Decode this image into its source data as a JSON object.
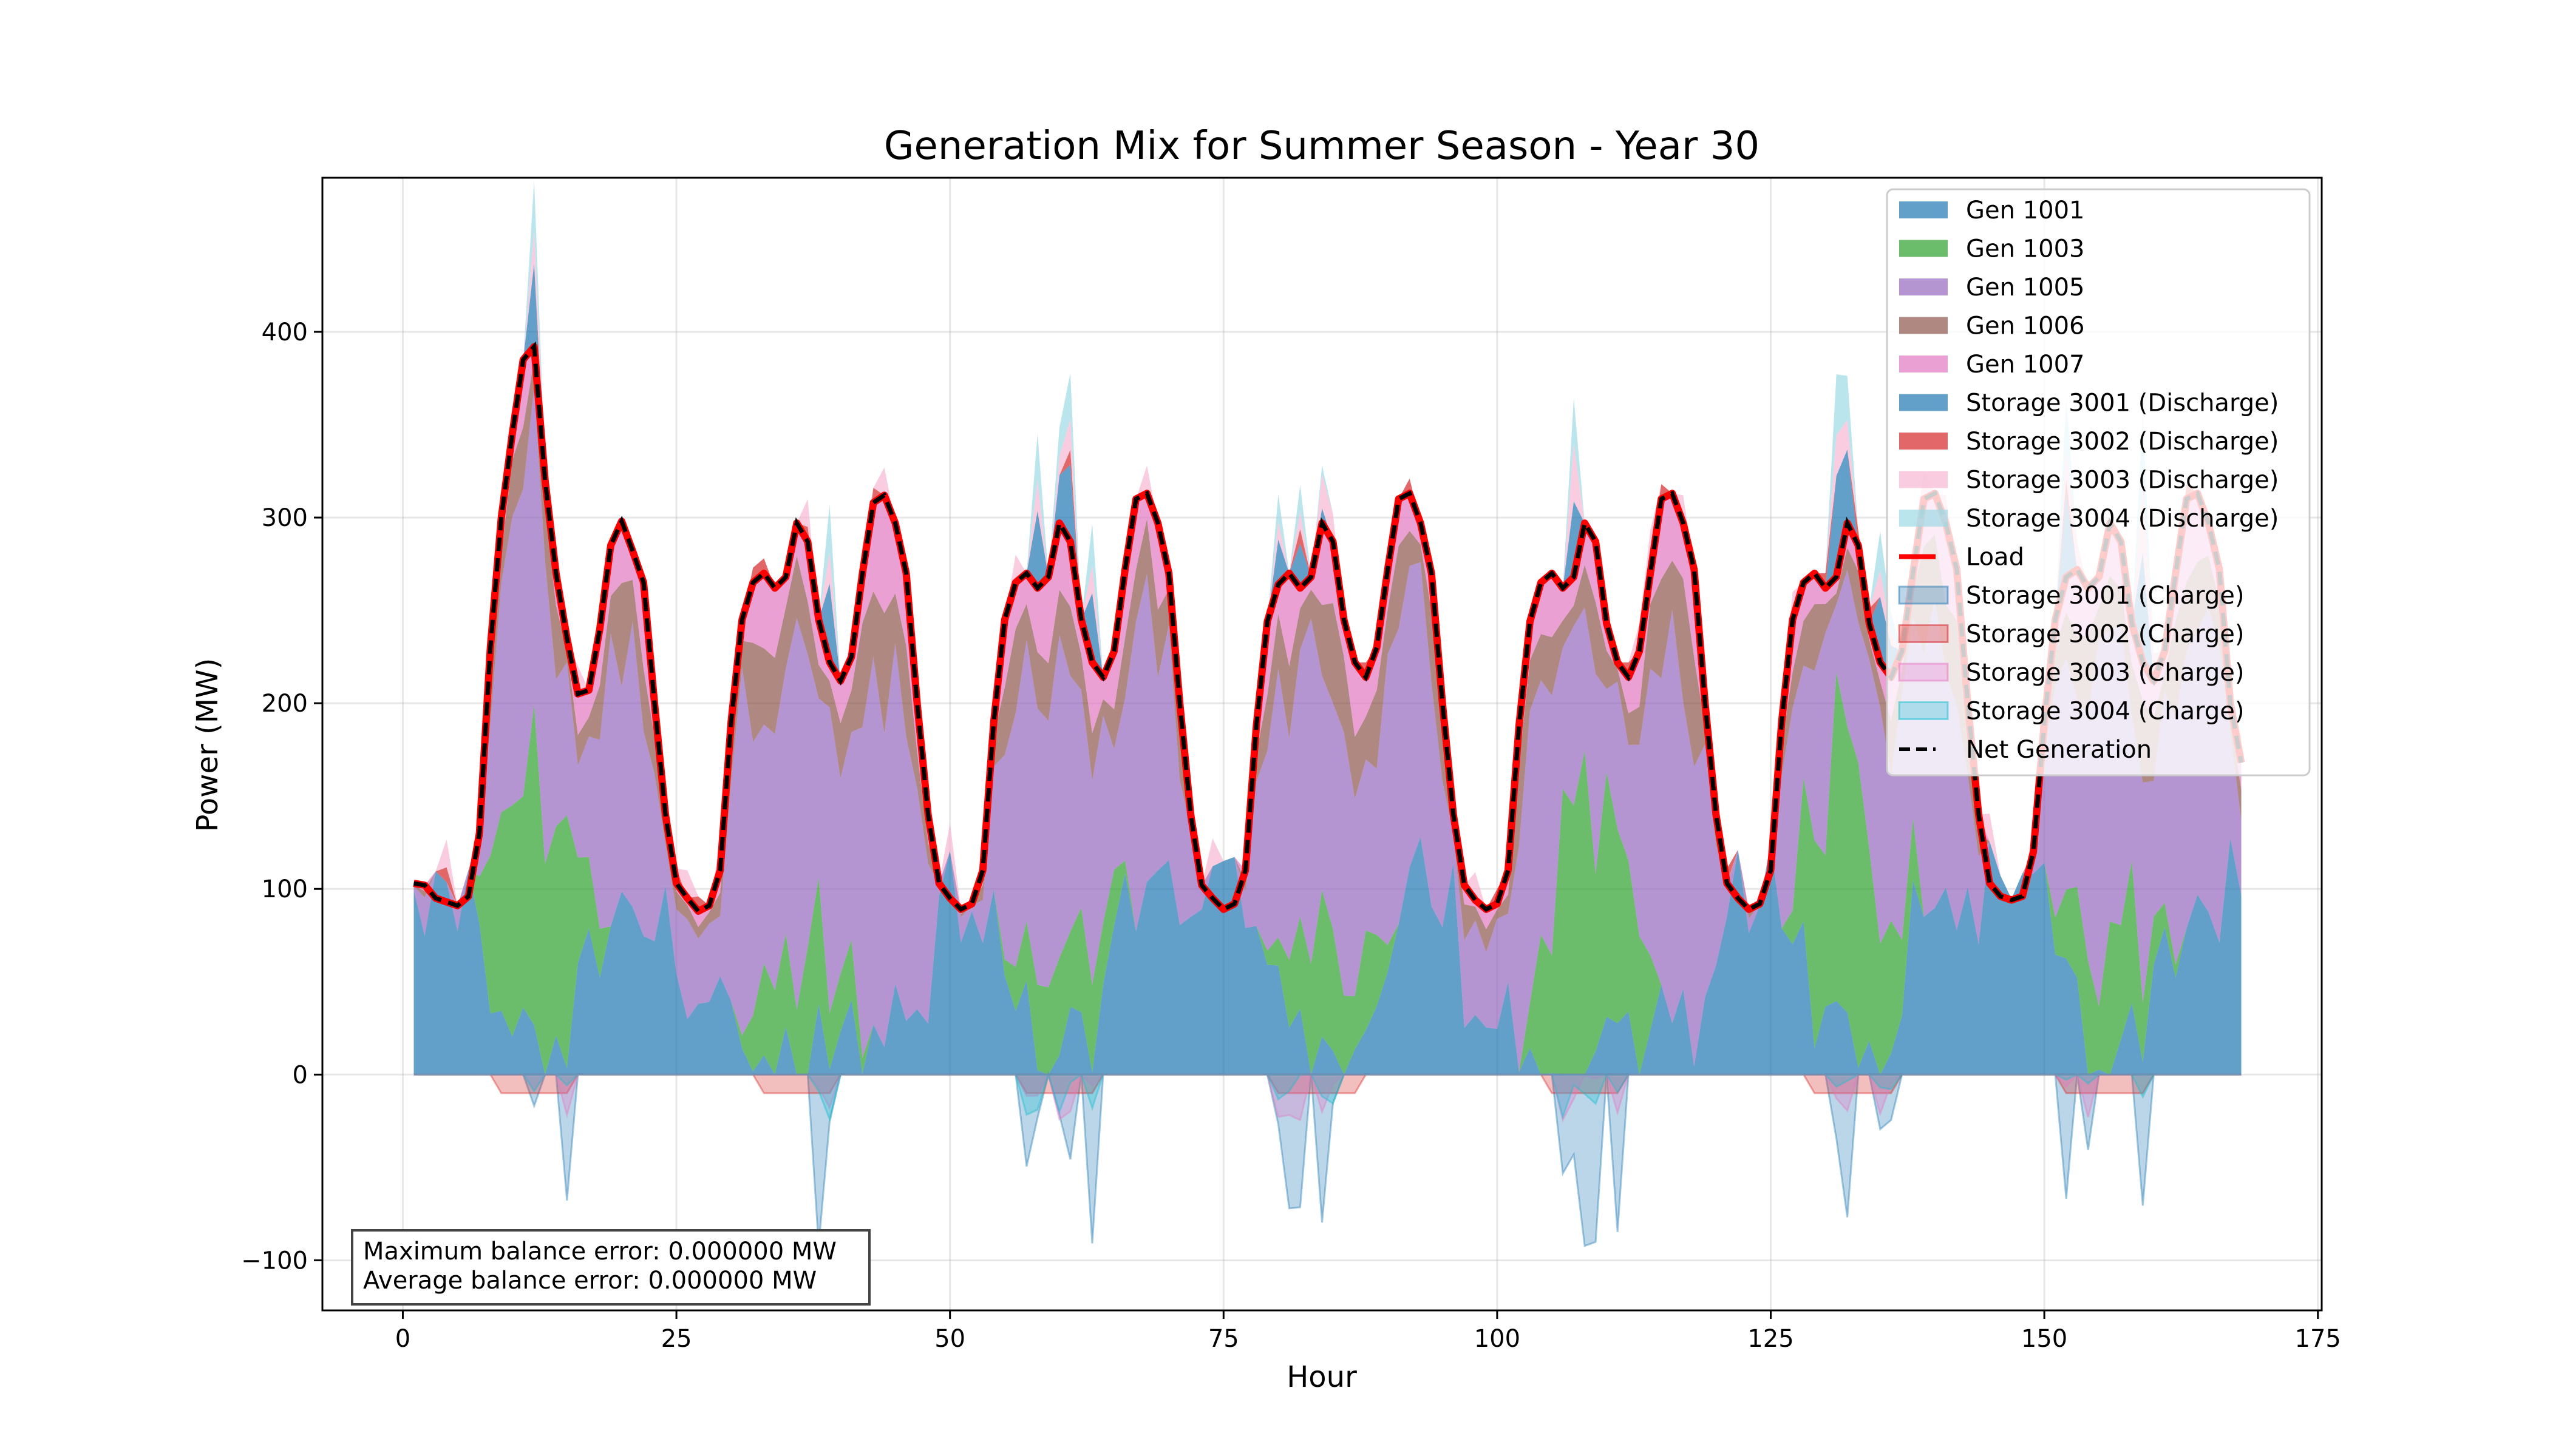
{
  "chart_data": {
    "type": "area",
    "title": "Generation Mix for Summer Season - Year 30",
    "xlabel": "Hour",
    "ylabel": "Power (MW)",
    "xlim": [
      -7.35,
      175.35
    ],
    "ylim": [
      -127,
      483
    ],
    "xticks": [
      0,
      25,
      50,
      75,
      100,
      125,
      150,
      175
    ],
    "yticks": [
      -100,
      0,
      100,
      200,
      300,
      400
    ],
    "grid": true,
    "legend_position": "top-right",
    "x_start": 1,
    "x_end": 168,
    "load_daily_profile": [
      103,
      102,
      95,
      93,
      91,
      96,
      130,
      230,
      300,
      345,
      385,
      392,
      320,
      270,
      235,
      205,
      207,
      240,
      285,
      298,
      282,
      265,
      200,
      140
    ],
    "load_daily_profiles_by_day": [
      [
        103,
        102,
        95,
        93,
        91,
        96,
        130,
        230,
        300,
        345,
        385,
        392,
        320,
        270,
        235,
        205,
        207,
        240,
        285,
        298,
        282,
        265,
        200,
        140
      ],
      [
        103,
        95,
        88,
        91,
        110,
        190,
        245,
        265,
        270,
        262,
        268,
        297,
        287,
        245,
        222,
        212,
        225,
        270,
        308,
        312,
        297,
        270,
        200,
        140
      ],
      [
        103,
        95,
        89,
        92,
        110,
        190,
        245,
        265,
        270,
        262,
        268,
        297,
        287,
        245,
        222,
        214,
        228,
        272,
        310,
        313,
        297,
        270,
        200,
        140
      ],
      [
        102,
        95,
        89,
        92,
        110,
        188,
        244,
        264,
        270,
        262,
        268,
        297,
        287,
        245,
        222,
        214,
        230,
        272,
        310,
        313,
        297,
        270,
        200,
        140
      ],
      [
        102,
        94,
        89,
        92,
        110,
        188,
        244,
        265,
        270,
        262,
        268,
        297,
        287,
        243,
        222,
        214,
        228,
        270,
        310,
        313,
        297,
        272,
        200,
        140
      ],
      [
        103,
        95,
        89,
        92,
        110,
        190,
        245,
        265,
        270,
        262,
        268,
        297,
        285,
        243,
        222,
        214,
        228,
        270,
        310,
        313,
        297,
        272,
        200,
        140
      ],
      [
        103,
        96,
        94,
        96,
        120,
        190,
        245,
        268,
        272,
        262,
        268,
        297,
        287,
        243,
        222,
        212,
        228,
        270,
        310,
        313,
        297,
        272,
        200,
        168
      ]
    ],
    "series": [
      {
        "name": "Gen 1001",
        "color": "#1f77b4",
        "alpha": 0.7,
        "kind": "generation"
      },
      {
        "name": "Gen 1003",
        "color": "#2ca02c",
        "alpha": 0.7,
        "kind": "generation"
      },
      {
        "name": "Gen 1005",
        "color": "#9467bd",
        "alpha": 0.7,
        "kind": "generation"
      },
      {
        "name": "Gen 1006",
        "color": "#8c564b",
        "alpha": 0.7,
        "kind": "generation"
      },
      {
        "name": "Gen 1007",
        "color": "#e377c2",
        "alpha": 0.7,
        "kind": "generation"
      },
      {
        "name": "Storage 3001 (Discharge)",
        "color": "#1f77b4",
        "alpha": 0.7,
        "kind": "discharge"
      },
      {
        "name": "Storage 3002 (Discharge)",
        "color": "#d62728",
        "alpha": 0.7,
        "kind": "discharge"
      },
      {
        "name": "Storage 3003 (Discharge)",
        "color": "#f7b6d2",
        "alpha": 0.7,
        "kind": "discharge"
      },
      {
        "name": "Storage 3004 (Discharge)",
        "color": "#9edae5",
        "alpha": 0.7,
        "kind": "discharge"
      },
      {
        "name": "Load",
        "color": "#ff0000",
        "kind": "line-solid"
      },
      {
        "name": "Storage 3001 (Charge)",
        "color": "#1f77b4",
        "alpha": 0.3,
        "kind": "charge"
      },
      {
        "name": "Storage 3002 (Charge)",
        "color": "#d62728",
        "alpha": 0.3,
        "kind": "charge"
      },
      {
        "name": "Storage 3003 (Charge)",
        "color": "#e377c2",
        "alpha": 0.3,
        "kind": "charge"
      },
      {
        "name": "Storage 3004 (Charge)",
        "color": "#17becf",
        "alpha": 0.3,
        "kind": "charge"
      },
      {
        "name": "Net Generation",
        "color": "#000000",
        "kind": "line-dashed"
      }
    ],
    "annotation": {
      "lines": [
        "Maximum balance error: 0.000000 MW",
        "Average balance error: 0.000000 MW"
      ],
      "position": "bottom-left"
    }
  }
}
